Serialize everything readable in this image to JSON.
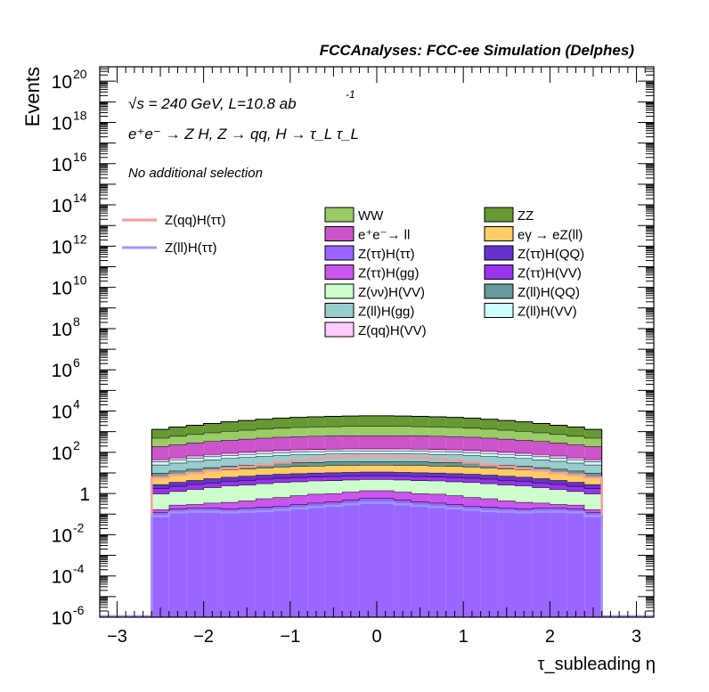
{
  "header": {
    "title": "FCCAnalyses: FCC-ee Simulation (Delphes)",
    "energy_label": "√s = 240 GeV, L=10.8 ab",
    "lumi_exponent": "-1",
    "process_label": "e⁺e⁻ → Z H, Z → qq, H → τ_L τ_L",
    "selection_label": "No additional selection"
  },
  "chart_data": {
    "type": "histogram-stacked",
    "xlabel": "τ_subleading η",
    "ylabel": "Events",
    "xlim": [
      -3.2,
      3.2
    ],
    "ylim": [
      1e-06,
      5e+20
    ],
    "log_y": true,
    "x_ticks": [
      -3,
      -2,
      -1,
      0,
      1,
      2,
      3
    ],
    "x_tick_labels": [
      "−3",
      "−2",
      "−1",
      "0",
      "1",
      "2",
      "3"
    ],
    "y_ticks": [
      {
        "value": 1e+20,
        "label": "10",
        "exp": "20"
      },
      {
        "value": 1e+18,
        "label": "10",
        "exp": "18"
      },
      {
        "value": 1e+16,
        "label": "10",
        "exp": "16"
      },
      {
        "value": 100000000000000.0,
        "label": "10",
        "exp": "14"
      },
      {
        "value": 1000000000000.0,
        "label": "10",
        "exp": "12"
      },
      {
        "value": 10000000000.0,
        "label": "10",
        "exp": "10"
      },
      {
        "value": 100000000.0,
        "label": "10",
        "exp": "8"
      },
      {
        "value": 1000000.0,
        "label": "10",
        "exp": "6"
      },
      {
        "value": 10000.0,
        "label": "10",
        "exp": "4"
      },
      {
        "value": 100.0,
        "label": "10",
        "exp": "2"
      },
      {
        "value": 1,
        "label": "1",
        "exp": ""
      },
      {
        "value": 0.01,
        "label": "10",
        "exp": "-2"
      },
      {
        "value": 0.0001,
        "label": "10",
        "exp": "-4"
      },
      {
        "value": 1e-06,
        "label": "10",
        "exp": "-6"
      }
    ],
    "bin_edges": [
      -2.6,
      -2.4,
      -2.2,
      -2.0,
      -1.8,
      -1.6,
      -1.4,
      -1.2,
      -1.0,
      -0.8,
      -0.6,
      -0.4,
      -0.2,
      0.0,
      0.2,
      0.4,
      0.6,
      0.8,
      1.0,
      1.2,
      1.4,
      1.6,
      1.8,
      2.0,
      2.2,
      2.4,
      2.6
    ],
    "stack_order_note": "bottom to top",
    "stack": [
      {
        "name": "Z(ττ)H(ττ)",
        "color": "#9966ff",
        "values": [
          0.12,
          0.18,
          0.2,
          0.2,
          0.18,
          0.2,
          0.22,
          0.25,
          0.3,
          0.35,
          0.4,
          0.5,
          0.6,
          0.6,
          0.5,
          0.4,
          0.35,
          0.3,
          0.25,
          0.22,
          0.2,
          0.18,
          0.2,
          0.2,
          0.18,
          0.12
        ]
      },
      {
        "name": "Z(ττ)H(gg)",
        "color": "#cc55ee",
        "values": [
          0.05,
          0.1,
          0.1,
          0.15,
          0.2,
          0.25,
          0.35,
          0.4,
          0.5,
          0.6,
          0.6,
          0.7,
          0.8,
          0.8,
          0.7,
          0.6,
          0.6,
          0.5,
          0.4,
          0.35,
          0.25,
          0.2,
          0.15,
          0.1,
          0.1,
          0.05
        ]
      },
      {
        "name": "Z(νν)H(VV)",
        "color": "#ccffcc",
        "values": [
          0.8,
          1.0,
          1.3,
          1.6,
          2.0,
          2.2,
          2.5,
          2.8,
          3.0,
          3.2,
          3.3,
          3.4,
          3.5,
          3.5,
          3.4,
          3.3,
          3.2,
          3.0,
          2.8,
          2.5,
          2.2,
          2.0,
          1.6,
          1.3,
          1.0,
          0.8
        ]
      },
      {
        "name": "Z(ττ)H(VV)",
        "color": "#9933ee",
        "values": [
          0.8,
          1.0,
          1.2,
          1.4,
          1.6,
          1.8,
          2.0,
          2.2,
          2.3,
          2.4,
          2.5,
          2.5,
          2.6,
          2.6,
          2.5,
          2.5,
          2.4,
          2.3,
          2.2,
          2.0,
          1.8,
          1.6,
          1.4,
          1.2,
          1.0,
          0.8
        ]
      },
      {
        "name": "Z(ττ)H(QQ)",
        "color": "#6633cc",
        "values": [
          1.0,
          1.3,
          1.6,
          2.0,
          2.3,
          2.6,
          2.9,
          3.1,
          3.3,
          3.5,
          3.6,
          3.7,
          3.8,
          3.8,
          3.7,
          3.6,
          3.5,
          3.3,
          3.1,
          2.9,
          2.6,
          2.3,
          2.0,
          1.6,
          1.3,
          1.0
        ]
      },
      {
        "name": "eγ → eZ(ll)",
        "color": "#ffcc66",
        "values": [
          4,
          5,
          6,
          7,
          8,
          9,
          10,
          11,
          12,
          12,
          13,
          13,
          13,
          13,
          13,
          13,
          12,
          12,
          11,
          10,
          9,
          8,
          7,
          6,
          5,
          4
        ]
      },
      {
        "name": "Z(ll)H(QQ)",
        "color": "#669999",
        "values": [
          3,
          4,
          5,
          6,
          7,
          8,
          9,
          10,
          11,
          11,
          12,
          12,
          12,
          12,
          12,
          12,
          11,
          11,
          10,
          9,
          8,
          7,
          6,
          5,
          4,
          3
        ]
      },
      {
        "name": "Z(ll)H(gg)",
        "color": "#99cccc",
        "values": [
          15,
          18,
          22,
          26,
          30,
          34,
          38,
          42,
          45,
          47,
          49,
          50,
          50,
          50,
          50,
          49,
          47,
          45,
          42,
          38,
          34,
          30,
          26,
          22,
          18,
          15
        ]
      },
      {
        "name": "Z(ll)H(VV)",
        "color": "#ccffff",
        "values": [
          10,
          12,
          15,
          18,
          20,
          22,
          25,
          27,
          29,
          30,
          31,
          32,
          32,
          32,
          32,
          31,
          30,
          29,
          27,
          25,
          22,
          20,
          18,
          15,
          12,
          10
        ]
      },
      {
        "name": "Z(qq)H(VV)",
        "color": "#ffccff",
        "values": [
          10,
          12,
          15,
          18,
          20,
          22,
          25,
          27,
          29,
          30,
          31,
          32,
          32,
          32,
          32,
          31,
          30,
          29,
          27,
          25,
          22,
          20,
          18,
          15,
          12,
          10
        ]
      },
      {
        "name": "e⁺e⁻→ ll",
        "color": "#cc55cc",
        "values": [
          150,
          180,
          220,
          260,
          300,
          340,
          380,
          420,
          450,
          470,
          490,
          500,
          500,
          500,
          500,
          490,
          470,
          450,
          420,
          380,
          340,
          300,
          260,
          220,
          180,
          150
        ]
      },
      {
        "name": "WW",
        "color": "#99cc66",
        "values": [
          300,
          380,
          460,
          560,
          660,
          760,
          860,
          960,
          1040,
          1100,
          1150,
          1190,
          1200,
          1200,
          1190,
          1150,
          1100,
          1040,
          960,
          860,
          760,
          660,
          560,
          460,
          380,
          300
        ]
      },
      {
        "name": "ZZ",
        "color": "#669933",
        "values": [
          800,
          1050,
          1300,
          1600,
          1950,
          2300,
          2650,
          3000,
          3300,
          3550,
          3750,
          3900,
          4000,
          4000,
          3900,
          3750,
          3550,
          3300,
          3000,
          2650,
          2300,
          1950,
          1600,
          1300,
          1050,
          800
        ]
      }
    ],
    "overlays": [
      {
        "name": "Z(qq)H(ττ)",
        "color": "#ff9999",
        "values": [
          6,
          8,
          10,
          13,
          16,
          20,
          25,
          32,
          40,
          48,
          55,
          60,
          62,
          62,
          60,
          55,
          48,
          40,
          32,
          25,
          20,
          16,
          13,
          10,
          8,
          6
        ]
      },
      {
        "name": "Z(ll)H(ττ)",
        "color": "#9999ff",
        "values": [
          0.08,
          0.12,
          0.13,
          0.13,
          0.12,
          0.13,
          0.14,
          0.16,
          0.19,
          0.22,
          0.25,
          0.3,
          0.35,
          0.35,
          0.3,
          0.25,
          0.22,
          0.19,
          0.16,
          0.14,
          0.13,
          0.12,
          0.13,
          0.13,
          0.12,
          0.08
        ]
      }
    ],
    "legend_left": [
      "Z(qq)H(ττ)",
      "Z(ll)H(ττ)"
    ],
    "legend_grid": [
      [
        "WW",
        "ZZ"
      ],
      [
        "e⁺e⁻→ ll",
        "eγ → eZ(ll)"
      ],
      [
        "Z(ττ)H(ττ)",
        "Z(ττ)H(QQ)"
      ],
      [
        "Z(ττ)H(gg)",
        "Z(ττ)H(VV)"
      ],
      [
        "Z(νν)H(VV)",
        "Z(ll)H(QQ)"
      ],
      [
        "Z(ll)H(gg)",
        "Z(ll)H(VV)"
      ],
      [
        "Z(qq)H(VV)",
        ""
      ]
    ]
  }
}
